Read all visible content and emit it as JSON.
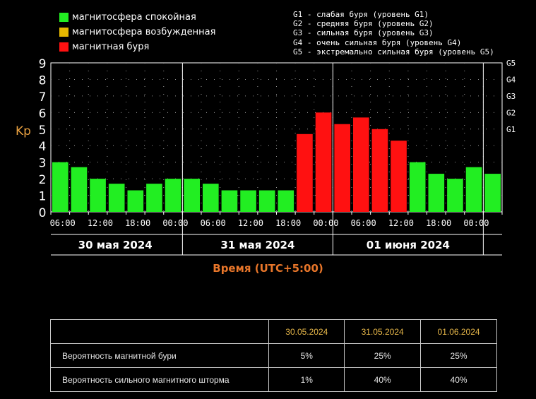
{
  "legend": {
    "items": [
      {
        "label": "магнитосфера спокойная",
        "color": "#22ee22"
      },
      {
        "label": "магнитосфера возбужденная",
        "color": "#e6b800"
      },
      {
        "label": "магнитная буря",
        "color": "#ff1111"
      }
    ],
    "storm_levels": [
      "G1 - слабая буря (уровень G1)",
      "G2 - средняя буря (уровень G2)",
      "G3 - сильная буря (уровень G3)",
      "G4 - очень сильная буря (уровень G4)",
      "G5 - экстремально сильная буря (уровень G5)"
    ]
  },
  "chart_data": {
    "type": "bar",
    "ylabel": "Kp",
    "xlabel": "Время (UTC+5:00)",
    "ylim": [
      0,
      9
    ],
    "yticks": [
      "0",
      "1",
      "2",
      "3",
      "4",
      "5",
      "6",
      "7",
      "8",
      "9"
    ],
    "right_ticks": [
      {
        "label": "G1",
        "value": 5
      },
      {
        "label": "G2",
        "value": 6
      },
      {
        "label": "G3",
        "value": 7
      },
      {
        "label": "G4",
        "value": 8
      },
      {
        "label": "G5",
        "value": 9
      }
    ],
    "grid": "dotted",
    "x_ticks": [
      "06:00",
      "12:00",
      "18:00",
      "00:00",
      "06:00",
      "12:00",
      "18:00",
      "00:00",
      "06:00",
      "12:00",
      "18:00",
      "00:00"
    ],
    "days": [
      "30 мая 2024",
      "31 мая 2024",
      "01 июня 2024"
    ],
    "values": [
      3.0,
      2.7,
      2.0,
      1.7,
      1.3,
      1.7,
      2.0,
      2.0,
      1.7,
      1.3,
      1.3,
      1.3,
      1.3,
      4.7,
      6.0,
      5.3,
      5.7,
      5.0,
      4.3,
      3.0,
      2.3,
      2.0,
      2.7,
      2.3
    ],
    "colors": [
      "#22ee22",
      "#22ee22",
      "#22ee22",
      "#22ee22",
      "#22ee22",
      "#22ee22",
      "#22ee22",
      "#22ee22",
      "#22ee22",
      "#22ee22",
      "#22ee22",
      "#22ee22",
      "#22ee22",
      "#ff1111",
      "#ff1111",
      "#ff1111",
      "#ff1111",
      "#ff1111",
      "#ff1111",
      "#22ee22",
      "#22ee22",
      "#22ee22",
      "#22ee22",
      "#22ee22"
    ]
  },
  "table": {
    "headers": [
      "",
      "30.05.2024",
      "31.05.2024",
      "01.06.2024"
    ],
    "rows": [
      {
        "label": "Вероятность магнитной бури",
        "values": [
          "5%",
          "25%",
          "25%"
        ]
      },
      {
        "label": "Вероятность сильного магнитного шторма",
        "values": [
          "1%",
          "40%",
          "40%"
        ]
      }
    ]
  }
}
